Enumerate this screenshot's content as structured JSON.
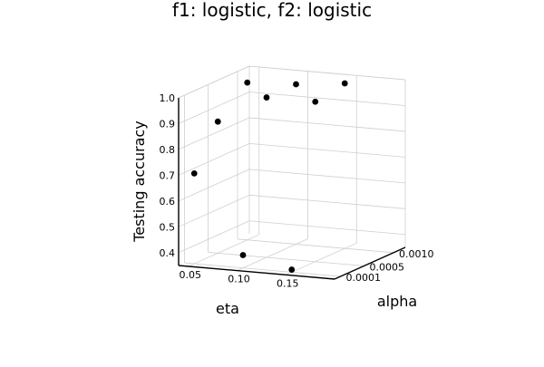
{
  "chart_data": {
    "type": "scatter",
    "title": "f1: logistic, f2: logistic",
    "xlabel": "eta",
    "ylabel": "alpha",
    "zlabel": "Testing accuracy",
    "projection": "3d",
    "grid": true,
    "legend": "none",
    "xlim": [
      0.04,
      0.2
    ],
    "ylim": [
      0.0,
      0.0012
    ],
    "zlim": [
      0.35,
      1.0
    ],
    "x_ticks": [
      0.05,
      0.1,
      0.15
    ],
    "x_tick_labels": [
      "0.05",
      "0.10",
      "0.15"
    ],
    "y_ticks": [
      0.0001,
      0.0005,
      0.001
    ],
    "y_tick_labels": [
      "0.0001",
      "0.0005",
      "0.0010"
    ],
    "z_ticks": [
      0.4,
      0.5,
      0.6,
      0.7,
      0.8,
      0.9,
      1.0
    ],
    "z_tick_labels": [
      "0.4",
      "0.5",
      "0.6",
      "0.7",
      "0.8",
      "0.9",
      "1.0"
    ],
    "marker_color": "#000000",
    "points": [
      {
        "x": 0.05,
        "y": 0.0001,
        "z": 0.7
      },
      {
        "x": 0.05,
        "y": 0.0005,
        "z": 0.86
      },
      {
        "x": 0.05,
        "y": 0.001,
        "z": 0.96
      },
      {
        "x": 0.1,
        "y": 0.0001,
        "z": 0.4
      },
      {
        "x": 0.1,
        "y": 0.0005,
        "z": 0.97
      },
      {
        "x": 0.1,
        "y": 0.001,
        "z": 0.97
      },
      {
        "x": 0.15,
        "y": 0.0001,
        "z": 0.36
      },
      {
        "x": 0.15,
        "y": 0.0005,
        "z": 0.97
      },
      {
        "x": 0.15,
        "y": 0.001,
        "z": 0.99
      }
    ]
  }
}
